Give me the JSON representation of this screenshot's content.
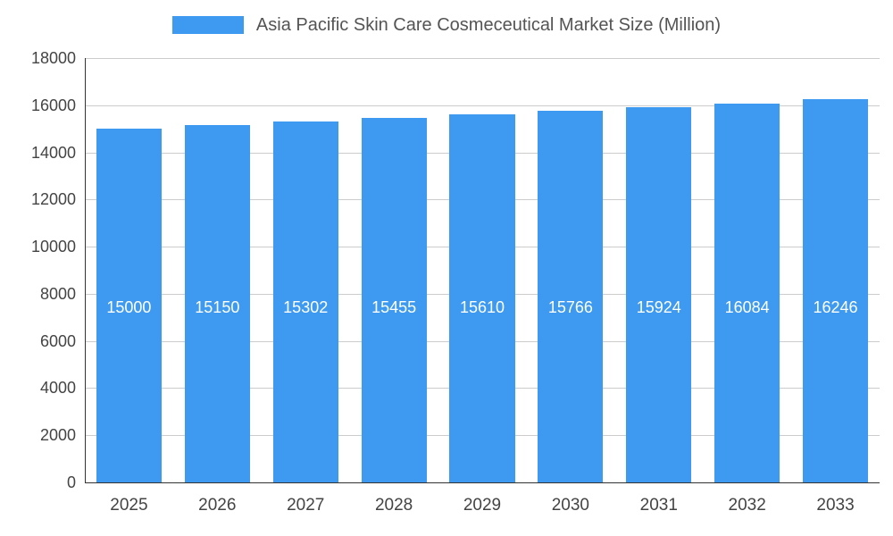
{
  "legend": {
    "label": "Asia Pacific Skin Care Cosmeceutical Market Size (Million)",
    "swatch_color": "#3D9AF0"
  },
  "chart_data": {
    "type": "bar",
    "title": "Asia Pacific Skin Care Cosmeceutical Market Size (Million)",
    "categories": [
      "2025",
      "2026",
      "2027",
      "2028",
      "2029",
      "2030",
      "2031",
      "2032",
      "2033"
    ],
    "values": [
      15000,
      15150,
      15302,
      15455,
      15610,
      15766,
      15924,
      16084,
      16246
    ],
    "xlabel": "",
    "ylabel": "",
    "ylim": [
      0,
      18000
    ],
    "ytick_step": 2000,
    "bar_color": "#3D9AF0",
    "bar_label_color": "#ffffff",
    "axis_text_color": "#444444",
    "gridline_color": "#cccccc",
    "grid": true,
    "legend_position": "top"
  }
}
